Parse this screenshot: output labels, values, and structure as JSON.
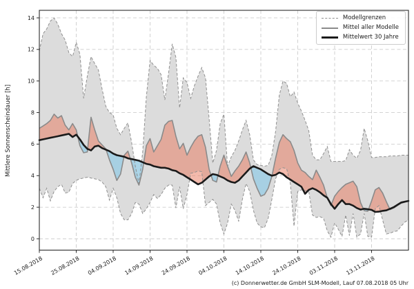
{
  "caption": "(c) Donnerwetter.de GmbH SLM-Modell, Lauf 07.08.2018 05 Uhr",
  "colors": {
    "background": "#ffffff",
    "grid": "#cdcdcd",
    "frame": "#2b2b2b",
    "band_fill": "#dcdcdc",
    "bound_line": "#8f8f8f",
    "model_mean_line": "#8a8a8a",
    "climate_mean_line": "#1a1a1a",
    "fill_above": "rgba(232,118,90,0.50)",
    "fill_below": "rgba(158,206,228,0.85)"
  },
  "chart_data": {
    "type": "area",
    "title": "",
    "xlabel": "",
    "ylabel": "Mittlere Sonnenscheindauer [h]",
    "ylim": [
      -0.7,
      14.5
    ],
    "grid": true,
    "y_ticks": [
      0,
      2,
      4,
      6,
      8,
      10,
      12,
      14
    ],
    "x_tick_days": [
      0,
      10,
      20,
      30,
      40,
      50,
      60,
      70,
      80,
      90
    ],
    "x_tick_labels": [
      "15.08.2018",
      "25.08.2018",
      "04.09.2018",
      "14.09.2018",
      "24.09.2018",
      "04.10.2018",
      "14.10.2018",
      "24.10.2018",
      "03.11.2018",
      "13.11.2018"
    ],
    "x_start_date": "15.08.2018",
    "x_end_date": "23.11.2018",
    "x_step_days": 1,
    "legend": {
      "position": "top-right",
      "entries": [
        {
          "label": "Modellgrenzen",
          "line": "dashed-gray"
        },
        {
          "label": "Mittel aller Modelle",
          "line": "solid-gray"
        },
        {
          "label": "Mittelwert 30 Jahre",
          "line": "solid-black-thick"
        }
      ]
    },
    "series": [
      {
        "name": "Modellgrenzen (obere Grenze)",
        "role": "upper_bound",
        "style": "dashed-gray",
        "values": [
          11.9,
          13.0,
          13.3,
          13.8,
          14.0,
          13.6,
          13.0,
          12.6,
          11.8,
          11.55,
          12.45,
          11.7,
          8.9,
          10.3,
          11.55,
          11.1,
          10.7,
          9.5,
          8.4,
          8.0,
          7.85,
          7.0,
          6.6,
          7.0,
          7.35,
          6.1,
          4.6,
          3.5,
          5.5,
          9.0,
          11.3,
          11.0,
          10.8,
          10.4,
          8.8,
          10.5,
          12.35,
          11.5,
          8.3,
          10.2,
          9.9,
          8.9,
          9.7,
          10.3,
          10.85,
          10.2,
          7.6,
          4.8,
          5.6,
          7.3,
          7.9,
          4.6,
          5.2,
          5.6,
          6.2,
          6.9,
          7.5,
          6.6,
          5.0,
          4.7,
          4.65,
          4.6,
          4.65,
          5.3,
          6.8,
          9.1,
          10.0,
          9.85,
          9.0,
          9.3,
          8.6,
          8.1,
          7.5,
          6.85,
          5.3,
          5.0,
          5.0,
          5.4,
          5.85,
          4.9,
          4.9,
          4.9,
          4.9,
          4.95,
          5.65,
          5.3,
          5.1,
          5.6,
          7.0,
          6.2,
          5.15,
          5.15,
          5.2,
          5.2,
          5.2,
          5.25,
          5.25,
          5.25,
          5.3,
          5.3,
          5.3
        ]
      },
      {
        "name": "Modellgrenzen (untere Grenze)",
        "role": "lower_bound",
        "style": "dashed-gray",
        "values": [
          3.2,
          2.6,
          3.2,
          2.4,
          3.0,
          3.3,
          3.45,
          2.9,
          2.95,
          3.5,
          3.7,
          3.8,
          3.85,
          3.9,
          3.85,
          3.8,
          3.75,
          3.6,
          3.3,
          2.45,
          3.2,
          2.6,
          1.6,
          1.2,
          1.2,
          1.6,
          2.3,
          2.2,
          1.6,
          1.9,
          2.3,
          2.8,
          2.55,
          2.8,
          3.2,
          3.4,
          3.4,
          1.95,
          3.3,
          1.9,
          2.8,
          4.15,
          4.2,
          4.3,
          4.25,
          2.1,
          2.3,
          2.5,
          2.2,
          1.0,
          0.3,
          1.0,
          2.2,
          1.8,
          1.1,
          2.5,
          3.5,
          3.0,
          1.8,
          1.0,
          0.75,
          0.7,
          1.3,
          2.5,
          3.8,
          4.4,
          4.5,
          4.45,
          3.5,
          0.8,
          3.0,
          3.1,
          3.05,
          3.0,
          1.5,
          1.35,
          1.4,
          1.3,
          0.5,
          0.1,
          1.0,
          0.6,
          0.15,
          1.5,
          0.2,
          1.6,
          0.1,
          0.3,
          1.6,
          0.15,
          0.1,
          1.9,
          2.1,
          1.2,
          0.3,
          0.35,
          0.45,
          0.5,
          0.8,
          1.05,
          1.2
        ]
      },
      {
        "name": "Mittel aller Modelle",
        "role": "model_mean",
        "style": "solid-gray",
        "values": [
          7.0,
          7.15,
          7.3,
          7.5,
          7.9,
          7.65,
          7.8,
          7.2,
          6.9,
          7.3,
          6.9,
          5.9,
          5.45,
          5.5,
          7.7,
          6.9,
          6.2,
          5.95,
          5.7,
          5.0,
          4.4,
          3.7,
          4.1,
          5.3,
          5.55,
          4.8,
          3.9,
          3.4,
          4.4,
          5.9,
          6.35,
          5.5,
          5.9,
          6.3,
          7.2,
          7.44,
          7.5,
          6.5,
          5.7,
          6.05,
          5.3,
          5.8,
          6.2,
          6.5,
          6.6,
          5.8,
          4.4,
          3.7,
          3.6,
          4.6,
          5.3,
          4.6,
          3.95,
          4.3,
          4.6,
          5.0,
          5.5,
          4.8,
          3.8,
          3.2,
          2.7,
          2.8,
          3.2,
          3.95,
          5.1,
          6.1,
          6.6,
          6.35,
          6.15,
          5.6,
          4.8,
          4.35,
          4.2,
          3.95,
          3.75,
          4.35,
          3.9,
          3.4,
          2.6,
          2.1,
          2.7,
          3.0,
          3.25,
          3.45,
          3.55,
          3.65,
          3.3,
          2.3,
          1.78,
          1.75,
          2.4,
          3.1,
          3.25,
          2.9,
          2.35,
          1.85,
          1.95,
          2.1,
          2.25,
          2.32,
          2.4
        ]
      },
      {
        "name": "Mittelwert 30 Jahre",
        "role": "climate_mean",
        "style": "solid-black-thick",
        "values": [
          6.25,
          6.3,
          6.35,
          6.4,
          6.45,
          6.5,
          6.55,
          6.6,
          6.65,
          6.45,
          6.6,
          6.3,
          5.95,
          5.7,
          5.6,
          5.85,
          5.9,
          5.75,
          5.65,
          5.55,
          5.4,
          5.3,
          5.25,
          5.2,
          5.1,
          5.05,
          5.0,
          4.95,
          4.85,
          4.75,
          4.7,
          4.6,
          4.55,
          4.5,
          4.5,
          4.45,
          4.35,
          4.3,
          4.15,
          4.05,
          3.9,
          3.75,
          3.6,
          3.45,
          3.55,
          3.75,
          3.95,
          4.1,
          4.05,
          3.95,
          3.85,
          3.7,
          3.6,
          3.55,
          3.7,
          3.95,
          4.2,
          4.45,
          4.6,
          4.5,
          4.4,
          4.25,
          4.1,
          4.0,
          4.05,
          4.2,
          4.1,
          3.9,
          3.75,
          3.6,
          3.45,
          3.3,
          2.85,
          3.1,
          3.2,
          3.1,
          2.95,
          2.75,
          2.6,
          2.2,
          1.9,
          2.2,
          2.45,
          2.2,
          2.2,
          2.1,
          1.95,
          1.85,
          1.9,
          1.87,
          1.83,
          1.7,
          1.72,
          1.77,
          1.8,
          1.9,
          2.0,
          2.15,
          2.3,
          2.35,
          2.4
        ]
      }
    ]
  }
}
